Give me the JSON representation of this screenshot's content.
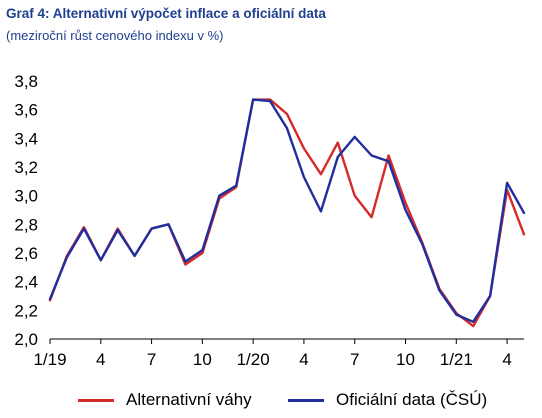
{
  "header": {
    "title": "Graf 4: Alternativní výpočet inflace a oficiální data",
    "subtitle": "(meziroční růst cenového indexu v %)"
  },
  "chart_data": {
    "type": "line",
    "title": "Graf 4: Alternativní výpočet inflace a oficiální data",
    "subtitle": "(meziroční růst cenového indexu v %)",
    "xlabel": "",
    "ylabel": "",
    "ylim": [
      2.0,
      3.8
    ],
    "yticks": [
      "2,0",
      "2,2",
      "2,4",
      "2,6",
      "2,8",
      "3,0",
      "3,2",
      "3,4",
      "3,6",
      "3,8"
    ],
    "ytick_values": [
      2.0,
      2.2,
      2.4,
      2.6,
      2.8,
      3.0,
      3.2,
      3.4,
      3.6,
      3.8
    ],
    "x": [
      "1/19",
      "2/19",
      "3/19",
      "4/19",
      "5/19",
      "6/19",
      "7/19",
      "8/19",
      "9/19",
      "10/19",
      "11/19",
      "12/19",
      "1/20",
      "2/20",
      "3/20",
      "4/20",
      "5/20",
      "6/20",
      "7/20",
      "8/20",
      "9/20",
      "10/20",
      "11/20",
      "12/20",
      "1/21",
      "2/21",
      "3/21",
      "4/21",
      "5/21"
    ],
    "xtick_labels": [
      "1/19",
      "4",
      "7",
      "10",
      "1/20",
      "4",
      "7",
      "10",
      "1/21",
      "4"
    ],
    "grid": false,
    "legend_position": "bottom",
    "series": [
      {
        "name": "Alternativní váhy",
        "color": "#d42a2a",
        "values": [
          2.27,
          2.58,
          2.78,
          2.55,
          2.77,
          2.58,
          2.77,
          2.8,
          2.52,
          2.6,
          2.98,
          3.06,
          3.67,
          3.67,
          3.57,
          3.33,
          3.15,
          3.37,
          3.0,
          2.85,
          3.28,
          2.95,
          2.67,
          2.35,
          2.18,
          2.09,
          2.3,
          3.04,
          2.73
        ]
      },
      {
        "name": "Oficiální data (ČSÚ)",
        "color": "#1f2f9f",
        "values": [
          2.28,
          2.57,
          2.77,
          2.55,
          2.76,
          2.58,
          2.77,
          2.8,
          2.54,
          2.62,
          3.0,
          3.07,
          3.67,
          3.66,
          3.47,
          3.13,
          2.89,
          3.27,
          3.41,
          3.28,
          3.24,
          2.9,
          2.66,
          2.34,
          2.17,
          2.12,
          2.3,
          3.09,
          2.88
        ]
      }
    ]
  }
}
